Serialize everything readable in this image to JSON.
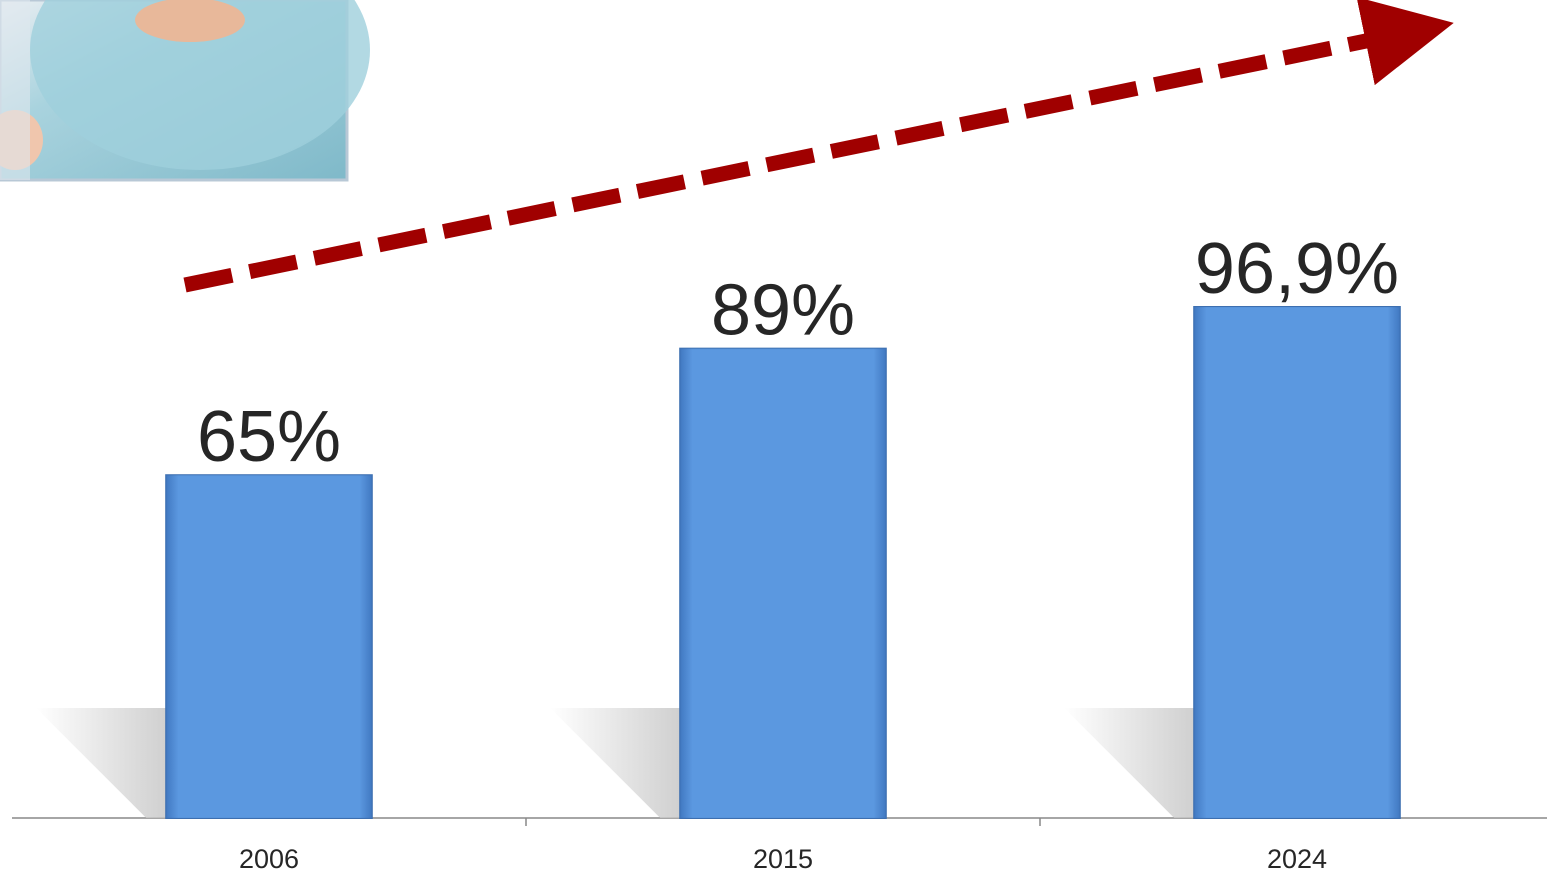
{
  "chart_data": {
    "type": "bar",
    "categories": [
      "2006",
      "2015",
      "2024"
    ],
    "values": [
      65,
      89,
      96.9
    ],
    "value_labels": [
      "65%",
      "89%",
      "96,9%"
    ],
    "color": "#5b98e0"
  }
}
